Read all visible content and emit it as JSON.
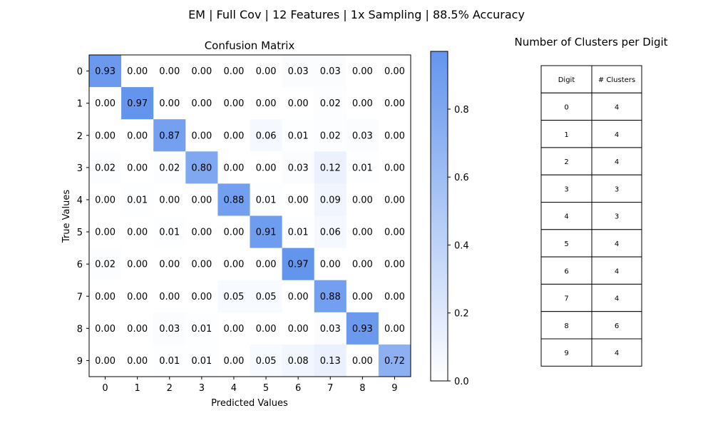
{
  "figure": {
    "suptitle": "EM | Full Cov | 12 Features | 1x Sampling | 88.5% Accuracy"
  },
  "chart_data": [
    {
      "type": "heatmap",
      "title": "Confusion Matrix",
      "xlabel": "Predicted Values",
      "ylabel": "True Values",
      "x_categories": [
        "0",
        "1",
        "2",
        "3",
        "4",
        "5",
        "6",
        "7",
        "8",
        "9"
      ],
      "y_categories": [
        "0",
        "1",
        "2",
        "3",
        "4",
        "5",
        "6",
        "7",
        "8",
        "9"
      ],
      "values": [
        [
          0.93,
          0.0,
          0.0,
          0.0,
          0.0,
          0.0,
          0.03,
          0.03,
          0.0,
          0.0
        ],
        [
          0.0,
          0.97,
          0.0,
          0.0,
          0.0,
          0.0,
          0.0,
          0.02,
          0.0,
          0.0
        ],
        [
          0.0,
          0.0,
          0.87,
          0.0,
          0.0,
          0.06,
          0.01,
          0.02,
          0.03,
          0.0
        ],
        [
          0.02,
          0.0,
          0.02,
          0.8,
          0.0,
          0.0,
          0.03,
          0.12,
          0.01,
          0.0
        ],
        [
          0.0,
          0.01,
          0.0,
          0.0,
          0.88,
          0.01,
          0.0,
          0.09,
          0.0,
          0.0
        ],
        [
          0.0,
          0.0,
          0.01,
          0.0,
          0.0,
          0.91,
          0.01,
          0.06,
          0.0,
          0.0
        ],
        [
          0.02,
          0.0,
          0.0,
          0.0,
          0.0,
          0.0,
          0.97,
          0.0,
          0.0,
          0.0
        ],
        [
          0.0,
          0.0,
          0.0,
          0.0,
          0.05,
          0.05,
          0.0,
          0.88,
          0.0,
          0.0
        ],
        [
          0.0,
          0.0,
          0.03,
          0.01,
          0.0,
          0.0,
          0.0,
          0.03,
          0.93,
          0.0
        ],
        [
          0.0,
          0.0,
          0.01,
          0.01,
          0.0,
          0.05,
          0.08,
          0.13,
          0.0,
          0.72
        ]
      ],
      "colormap": {
        "low": "#ffffff",
        "high": "#6495ed"
      },
      "colorbar": {
        "range": [
          0,
          0.97
        ],
        "ticks": [
          0.0,
          0.2,
          0.4,
          0.6,
          0.8
        ],
        "tick_labels": [
          "0.0",
          "0.2",
          "0.4",
          "0.6",
          "0.8"
        ]
      },
      "grid": false
    },
    {
      "type": "table",
      "title": "Number of Clusters per Digit",
      "columns": [
        "Digit",
        "# Clusters"
      ],
      "rows": [
        [
          "0",
          "4"
        ],
        [
          "1",
          "4"
        ],
        [
          "2",
          "4"
        ],
        [
          "3",
          "3"
        ],
        [
          "4",
          "3"
        ],
        [
          "5",
          "4"
        ],
        [
          "6",
          "4"
        ],
        [
          "7",
          "4"
        ],
        [
          "8",
          "6"
        ],
        [
          "9",
          "4"
        ]
      ]
    }
  ]
}
